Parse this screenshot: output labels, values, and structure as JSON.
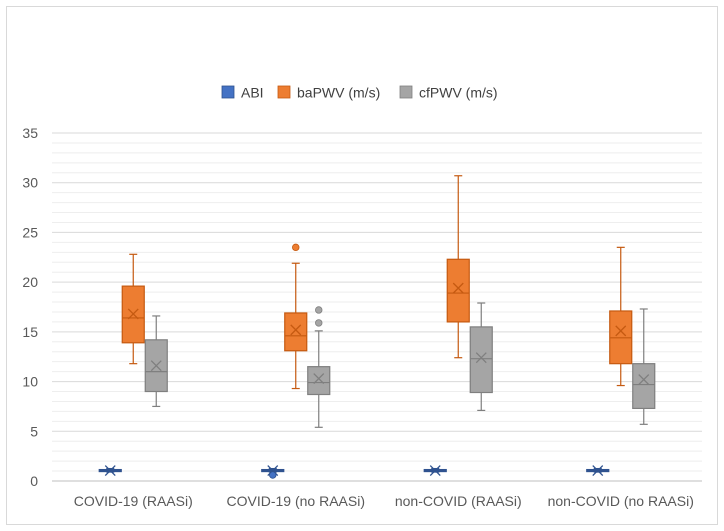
{
  "chart_data": {
    "type": "box",
    "title": "",
    "xlabel": "",
    "ylabel": "",
    "ylim": [
      0,
      35
    ],
    "yticks": [
      0,
      5,
      10,
      15,
      20,
      25,
      30,
      35
    ],
    "minor_grid_step": 1,
    "categories": [
      "COVID-19 (RAASi)",
      "COVID-19 (no RAASi)",
      "non-COVID (RAASi)",
      "non-COVID (no RAASi)"
    ],
    "series": [
      {
        "name": "ABI",
        "color": "#4472c4",
        "stroke": "#2f528f",
        "boxes": [
          {
            "min": 0.9,
            "q1": 1.0,
            "median": 1.05,
            "q3": 1.15,
            "max": 1.25,
            "mean": 1.05,
            "outliers": []
          },
          {
            "min": 0.9,
            "q1": 1.0,
            "median": 1.05,
            "q3": 1.15,
            "max": 1.25,
            "mean": 1.05,
            "outliers": [
              0.6
            ]
          },
          {
            "min": 0.9,
            "q1": 1.0,
            "median": 1.05,
            "q3": 1.15,
            "max": 1.25,
            "mean": 1.05,
            "outliers": []
          },
          {
            "min": 0.9,
            "q1": 1.0,
            "median": 1.05,
            "q3": 1.15,
            "max": 1.25,
            "mean": 1.05,
            "outliers": []
          }
        ]
      },
      {
        "name": "baPWV (m/s)",
        "color": "#ed7d31",
        "stroke": "#c55a11",
        "boxes": [
          {
            "min": 11.8,
            "q1": 13.9,
            "median": 16.4,
            "q3": 19.6,
            "max": 22.8,
            "mean": 16.8,
            "outliers": []
          },
          {
            "min": 9.3,
            "q1": 13.1,
            "median": 14.6,
            "q3": 16.9,
            "max": 21.9,
            "mean": 15.2,
            "outliers": [
              23.5
            ]
          },
          {
            "min": 12.4,
            "q1": 16.0,
            "median": 18.9,
            "q3": 22.3,
            "max": 30.7,
            "mean": 19.4,
            "outliers": []
          },
          {
            "min": 9.6,
            "q1": 11.8,
            "median": 14.4,
            "q3": 17.1,
            "max": 23.5,
            "mean": 15.1,
            "outliers": []
          }
        ]
      },
      {
        "name": "cfPWV (m/s)",
        "color": "#a5a5a5",
        "stroke": "#7f7f7f",
        "boxes": [
          {
            "min": 7.5,
            "q1": 9.0,
            "median": 11.0,
            "q3": 14.2,
            "max": 16.6,
            "mean": 11.6,
            "outliers": []
          },
          {
            "min": 5.4,
            "q1": 8.7,
            "median": 9.9,
            "q3": 11.5,
            "max": 15.1,
            "mean": 10.3,
            "outliers": [
              15.9,
              17.2
            ]
          },
          {
            "min": 7.1,
            "q1": 8.9,
            "median": 12.3,
            "q3": 15.5,
            "max": 17.9,
            "mean": 12.4,
            "outliers": []
          },
          {
            "min": 5.7,
            "q1": 7.3,
            "median": 9.7,
            "q3": 11.8,
            "max": 17.3,
            "mean": 10.2,
            "outliers": []
          }
        ]
      }
    ],
    "legend": {
      "position": "top",
      "labels": [
        "ABI",
        "baPWV (m/s)",
        "cfPWV (m/s)"
      ]
    }
  }
}
